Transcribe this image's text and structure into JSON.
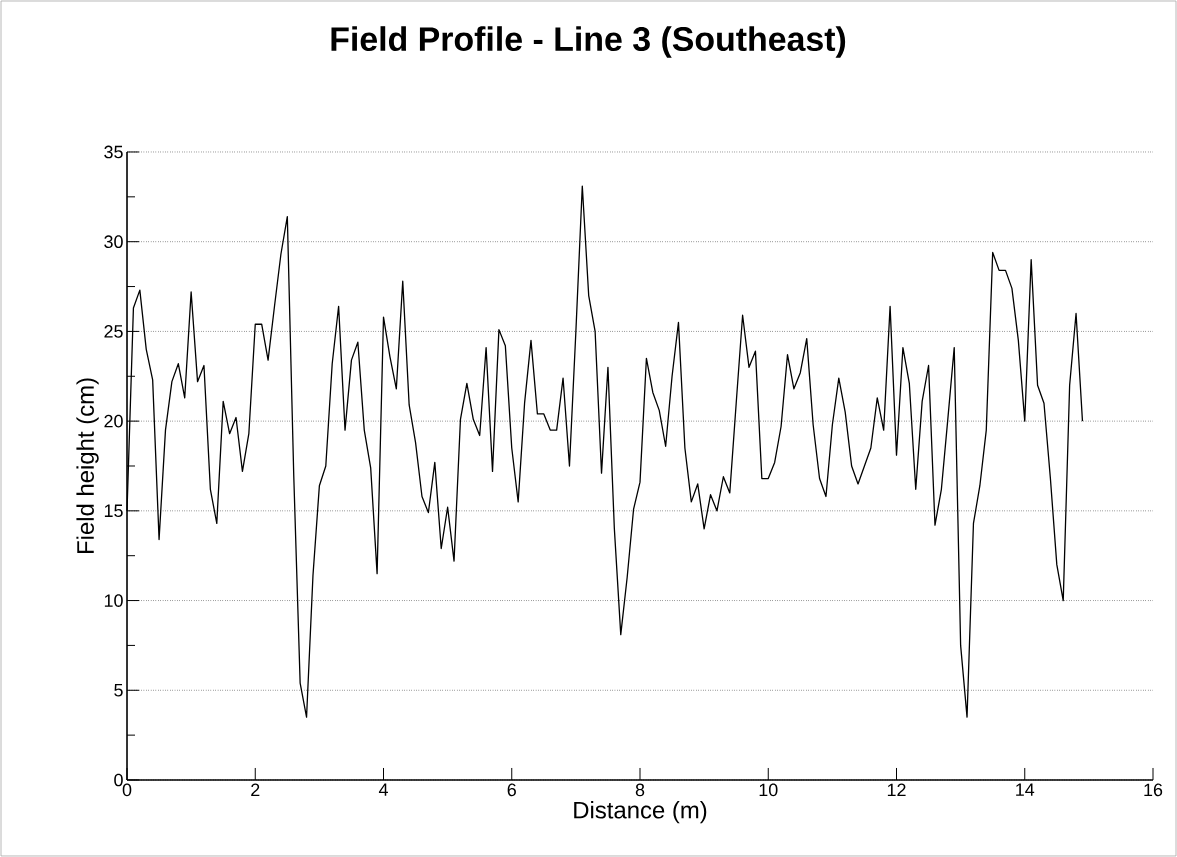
{
  "chart_data": {
    "type": "line",
    "title": "Field Profile - Line 3 (Southeast)",
    "xlabel": "Distance (m)",
    "ylabel": "Field height (cm)",
    "x": [
      0,
      0.1,
      0.2,
      0.3,
      0.4,
      0.5,
      0.6,
      0.7,
      0.8,
      0.9,
      1,
      1.1,
      1.2,
      1.3,
      1.4,
      1.5,
      1.6,
      1.7,
      1.8,
      1.9,
      2,
      2.1,
      2.2,
      2.3,
      2.4,
      2.5,
      2.6,
      2.7,
      2.8,
      2.9,
      3,
      3.1,
      3.2,
      3.3,
      3.4,
      3.5,
      3.6,
      3.7,
      3.8,
      3.9,
      4,
      4.1,
      4.2,
      4.3,
      4.4,
      4.5,
      4.6,
      4.7,
      4.8,
      4.9,
      5,
      5.1,
      5.2,
      5.3,
      5.4,
      5.5,
      5.6,
      5.7,
      5.8,
      5.9,
      6,
      6.1,
      6.2,
      6.3,
      6.4,
      6.5,
      6.6,
      6.7,
      6.8,
      6.9,
      7,
      7.1,
      7.2,
      7.3,
      7.4,
      7.5,
      7.6,
      7.7,
      7.8,
      7.9,
      8,
      8.1,
      8.2,
      8.3,
      8.4,
      8.5,
      8.6,
      8.7,
      8.8,
      8.9,
      9,
      9.1,
      9.2,
      9.3,
      9.4,
      9.5,
      9.6,
      9.7,
      9.8,
      9.9,
      10,
      10.1,
      10.2,
      10.3,
      10.4,
      10.5,
      10.6,
      10.7,
      10.8,
      10.9,
      11,
      11.1,
      11.2,
      11.3,
      11.4,
      11.5,
      11.6,
      11.7,
      11.8,
      11.9,
      12,
      12.1,
      12.2,
      12.3,
      12.4,
      12.5,
      12.6,
      12.7,
      12.8,
      12.9,
      13,
      13.1,
      13.2,
      13.3,
      13.4,
      13.5,
      13.6,
      13.7,
      13.8,
      13.9,
      14,
      14.1,
      14.2,
      14.3,
      14.4,
      14.5,
      14.6,
      14.7,
      14.8,
      14.9
    ],
    "series": [
      {
        "color": "#000000",
        "values": [
          15,
          26.3,
          27.3,
          24,
          22.3,
          13.4,
          19.5,
          22.2,
          23.2,
          21.3,
          27.2,
          22.2,
          23.1,
          16.2,
          14.3,
          21.1,
          19.3,
          20.2,
          17.2,
          19.3,
          25.4,
          25.4,
          23.4,
          26.4,
          29.3,
          31.4,
          17,
          5.4,
          3.5,
          11.4,
          16.4,
          17.5,
          23.2,
          26.4,
          19.5,
          23.4,
          24.4,
          19.5,
          17.4,
          11.5,
          25.8,
          23.6,
          21.8,
          27.8,
          20.9,
          18.8,
          15.8,
          14.9,
          17.7,
          12.9,
          15.2,
          12.2,
          20.1,
          22.1,
          20.1,
          19.2,
          24.1,
          17.2,
          25.1,
          24.2,
          18.5,
          15.5,
          21,
          24.5,
          20.4,
          20.4,
          19.5,
          19.5,
          22.4,
          17.5,
          25,
          33.1,
          27,
          25,
          17.1,
          23,
          14,
          8.1,
          11.3,
          15.1,
          16.6,
          23.5,
          21.6,
          20.6,
          18.6,
          22.5,
          25.5,
          18.5,
          15.5,
          16.5,
          14,
          15.9,
          15,
          16.9,
          16,
          21,
          25.9,
          23,
          23.9,
          16.8,
          16.8,
          17.7,
          19.7,
          23.7,
          21.8,
          22.7,
          24.6,
          19.8,
          16.8,
          15.8,
          19.8,
          22.4,
          20.5,
          17.5,
          16.5,
          17.5,
          18.5,
          21.3,
          19.5,
          26.4,
          18.1,
          24.1,
          22.1,
          16.2,
          21.1,
          23.1,
          14.2,
          16.2,
          20.1,
          24.1,
          7.5,
          3.5,
          14.3,
          16.4,
          19.5,
          29.4,
          28.4,
          28.4,
          27.4,
          24.5,
          20,
          29,
          22,
          21,
          16.8,
          12,
          10,
          22,
          26,
          20
        ]
      }
    ],
    "xlim": [
      0,
      16
    ],
    "ylim": [
      0,
      35
    ],
    "xticks": [
      0,
      2,
      4,
      6,
      8,
      10,
      12,
      14,
      16
    ],
    "yticks": [
      0,
      5,
      10,
      15,
      20,
      25,
      30,
      35
    ],
    "grid": "y",
    "line_style": "solid",
    "marker": "none"
  }
}
